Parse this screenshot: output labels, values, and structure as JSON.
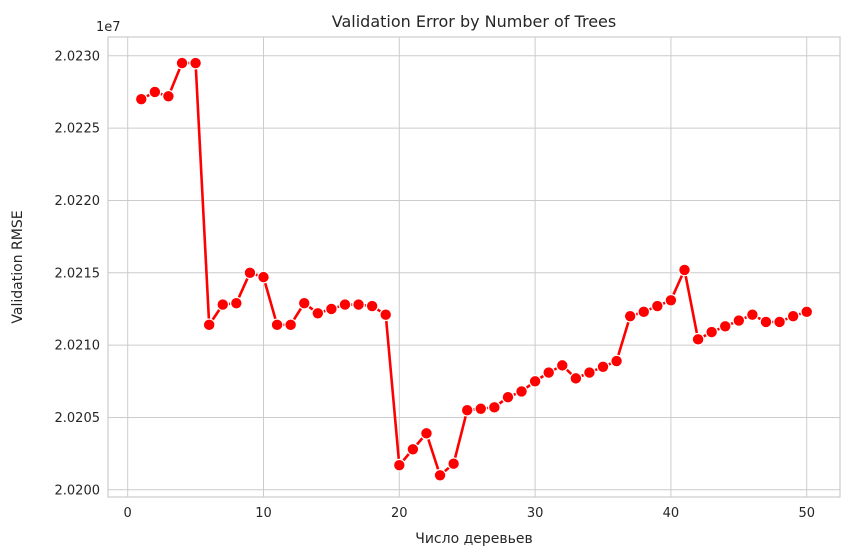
{
  "chart_data": {
    "type": "line",
    "title": "Validation Error by Number of Trees",
    "xlabel": "Число деревьев",
    "ylabel": "Validation RMSE",
    "y_offset_text": "1e7",
    "xlim": [
      -1.45,
      52.45
    ],
    "ylim": [
      2.01995,
      2.02313
    ],
    "x_ticks": [
      0,
      10,
      20,
      30,
      40,
      50
    ],
    "x_tick_labels": [
      "0",
      "10",
      "20",
      "30",
      "40",
      "50"
    ],
    "y_ticks": [
      2.02,
      2.0205,
      2.021,
      2.0215,
      2.022,
      2.0225,
      2.023
    ],
    "y_tick_labels": [
      "2.0200",
      "2.0205",
      "2.0210",
      "2.0215",
      "2.0220",
      "2.0225",
      "2.0230"
    ],
    "grid": true,
    "series": [
      {
        "color": "#ff0000",
        "marker": "circle",
        "x": [
          1,
          2,
          3,
          4,
          5,
          6,
          7,
          8,
          9,
          10,
          11,
          12,
          13,
          14,
          15,
          16,
          17,
          18,
          19,
          20,
          21,
          22,
          23,
          24,
          25,
          26,
          27,
          28,
          29,
          30,
          31,
          32,
          33,
          34,
          35,
          36,
          37,
          38,
          39,
          40,
          41,
          42,
          43,
          44,
          45,
          46,
          47,
          48,
          49,
          50
        ],
        "y": [
          2.0227,
          2.02275,
          2.02272,
          2.02295,
          2.02295,
          2.02114,
          2.02128,
          2.02129,
          2.0215,
          2.02147,
          2.02114,
          2.02114,
          2.02129,
          2.02122,
          2.02125,
          2.02128,
          2.02128,
          2.02127,
          2.02121,
          2.02017,
          2.02028,
          2.02039,
          2.0201,
          2.02018,
          2.02055,
          2.02056,
          2.02057,
          2.02064,
          2.02068,
          2.02075,
          2.02081,
          2.02086,
          2.02077,
          2.02081,
          2.02085,
          2.02089,
          2.0212,
          2.02123,
          2.02127,
          2.02131,
          2.02152,
          2.02104,
          2.02109,
          2.02113,
          2.02117,
          2.02121,
          2.02116,
          2.02116,
          2.0212,
          2.02123
        ]
      }
    ]
  }
}
